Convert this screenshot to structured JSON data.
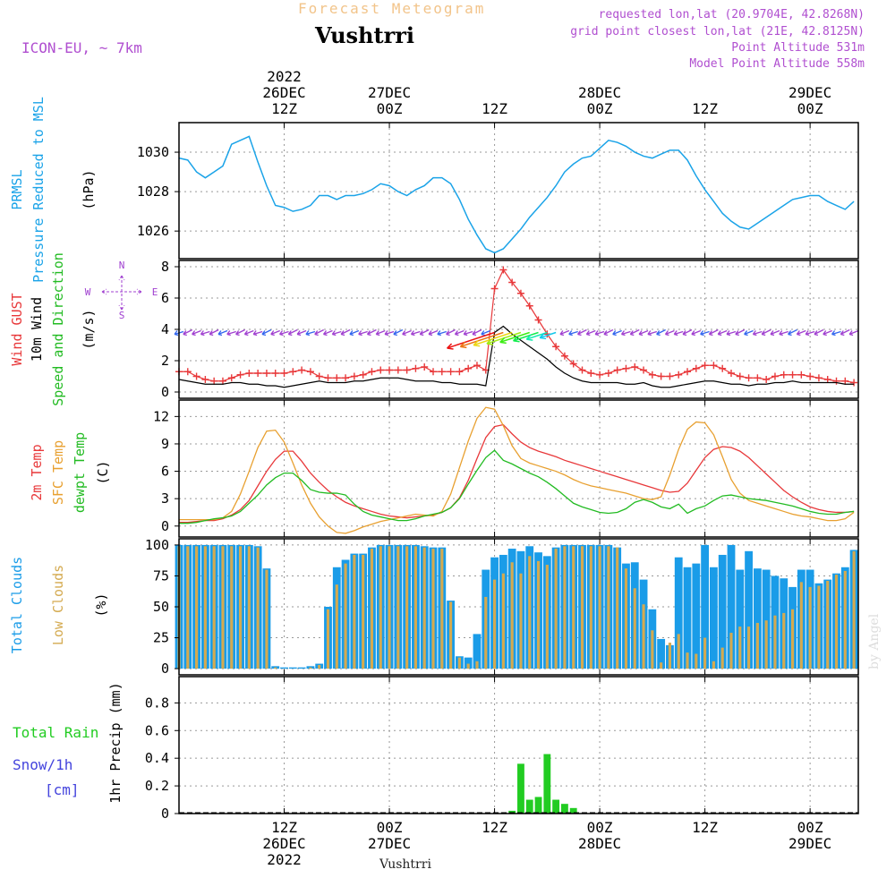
{
  "header": {
    "product_title": "Forecast Meteogram",
    "location": "Vushtrri",
    "model": "ICON-EU, ~ 7km",
    "info_lines": [
      "requested lon,lat (20.9704E, 42.8268N)",
      "grid point closest lon,lat (21E, 42.8125N)",
      "Point Altitude 531m",
      "Model Point Altitude 558m"
    ]
  },
  "footer": {
    "location": "Vushtrri",
    "credit": "by Angel"
  },
  "time_axis": {
    "hour_ticks": [
      12,
      24,
      36,
      48,
      60,
      72
    ],
    "top_labels": [
      {
        "h": 12,
        "lines": [
          "2022",
          "26DEC",
          "12Z"
        ]
      },
      {
        "h": 24,
        "lines": [
          "27DEC",
          "00Z"
        ]
      },
      {
        "h": 36,
        "lines": [
          "12Z"
        ]
      },
      {
        "h": 48,
        "lines": [
          "28DEC",
          "00Z"
        ]
      },
      {
        "h": 60,
        "lines": [
          "12Z"
        ]
      },
      {
        "h": 72,
        "lines": [
          "29DEC",
          "00Z"
        ]
      }
    ],
    "bottom_labels": [
      {
        "h": 12,
        "lines": [
          "12Z",
          "26DEC",
          "2022"
        ]
      },
      {
        "h": 24,
        "lines": [
          "00Z",
          "27DEC"
        ]
      },
      {
        "h": 36,
        "lines": [
          "12Z"
        ]
      },
      {
        "h": 48,
        "lines": [
          "00Z",
          "28DEC"
        ]
      },
      {
        "h": 60,
        "lines": [
          "12Z"
        ]
      },
      {
        "h": 72,
        "lines": [
          "00Z",
          "29DEC"
        ]
      }
    ]
  },
  "panels": {
    "pressure": {
      "labels": [
        "PRMSL",
        "Pressure Reduced to MSL"
      ],
      "unit": "(hPa)"
    },
    "wind": {
      "labels": [
        "Wind GUST",
        "10m Wind",
        "Speed and Direction"
      ],
      "unit": "(m/s)",
      "compass": {
        "n": "N",
        "s": "S",
        "w": "W",
        "e": "E"
      }
    },
    "temp": {
      "labels": [
        "2m Temp",
        "SFC Temp",
        "dewpt Temp"
      ],
      "unit": "(C)"
    },
    "clouds": {
      "labels": [
        "Total Clouds",
        "Low Clouds"
      ],
      "unit": "(%)"
    },
    "precip": {
      "labels": [
        "Total Rain",
        "Snow/1h",
        "[cm]"
      ],
      "axis_label": "1hr Precip (mm)"
    }
  },
  "colors": {
    "pressure": "#1aa3e8",
    "gust": "#e8383a",
    "wind": "#000000",
    "t2m": "#e8383a",
    "sfc": "#e8a030",
    "dewpt": "#22bb22",
    "total_clouds": "#1a9ce8",
    "low_clouds": "#d4aa50",
    "rain": "#22cc22",
    "snow": "#4444dd",
    "barb": "#a040d0"
  },
  "chart_data": [
    {
      "type": "line",
      "title": "PRMSL Pressure Reduced to MSL",
      "ylabel": "(hPa)",
      "ylim": [
        1024.6,
        1031.5
      ],
      "yticks": [
        1026,
        1028,
        1030
      ],
      "x_hours": [
        0,
        1,
        2,
        3,
        4,
        5,
        6,
        7,
        8,
        9,
        10,
        11,
        12,
        13,
        14,
        15,
        16,
        17,
        18,
        19,
        20,
        21,
        22,
        23,
        24,
        25,
        26,
        27,
        28,
        29,
        30,
        31,
        32,
        33,
        34,
        35,
        36,
        37,
        38,
        39,
        40,
        41,
        42,
        43,
        44,
        45,
        46,
        47,
        48,
        49,
        50,
        51,
        52,
        53,
        54,
        55,
        56,
        57,
        58,
        59,
        60,
        61,
        62,
        63,
        64,
        65,
        66,
        67,
        68,
        69,
        70,
        71,
        72,
        73,
        74,
        75,
        76,
        77
      ],
      "series": [
        {
          "name": "PRMSL",
          "values": [
            1029.7,
            1029.6,
            1029.0,
            1028.7,
            1029.0,
            1029.3,
            1030.4,
            1030.6,
            1030.8,
            1029.5,
            1028.3,
            1027.3,
            1027.2,
            1027.0,
            1027.1,
            1027.3,
            1027.8,
            1027.8,
            1027.6,
            1027.8,
            1027.8,
            1027.9,
            1028.1,
            1028.4,
            1028.3,
            1028.0,
            1027.8,
            1028.1,
            1028.3,
            1028.7,
            1028.7,
            1028.4,
            1027.6,
            1026.6,
            1025.8,
            1025.1,
            1024.9,
            1025.1,
            1025.6,
            1026.1,
            1026.7,
            1027.2,
            1027.7,
            1028.3,
            1029.0,
            1029.4,
            1029.7,
            1029.8,
            1030.2,
            1030.6,
            1030.5,
            1030.3,
            1030.0,
            1029.8,
            1029.7,
            1029.9,
            1030.1,
            1030.1,
            1029.6,
            1028.8,
            1028.1,
            1027.5,
            1026.9,
            1026.5,
            1026.2,
            1026.1,
            1026.4,
            1026.7,
            1027.0,
            1027.3,
            1027.6,
            1027.7,
            1027.8,
            1027.8,
            1027.5,
            1027.3,
            1027.1,
            1027.5
          ]
        }
      ]
    },
    {
      "type": "line",
      "title": "Wind GUST / 10m Wind Speed and Direction",
      "ylabel": "(m/s)",
      "ylim": [
        -0.4,
        8.4
      ],
      "yticks": [
        0,
        2,
        4,
        6,
        8
      ],
      "x_hours": [
        0,
        1,
        2,
        3,
        4,
        5,
        6,
        7,
        8,
        9,
        10,
        11,
        12,
        13,
        14,
        15,
        16,
        17,
        18,
        19,
        20,
        21,
        22,
        23,
        24,
        25,
        26,
        27,
        28,
        29,
        30,
        31,
        32,
        33,
        34,
        35,
        36,
        37,
        38,
        39,
        40,
        41,
        42,
        43,
        44,
        45,
        46,
        47,
        48,
        49,
        50,
        51,
        52,
        53,
        54,
        55,
        56,
        57,
        58,
        59,
        60,
        61,
        62,
        63,
        64,
        65,
        66,
        67,
        68,
        69,
        70,
        71,
        72,
        73,
        74,
        75,
        76,
        77
      ],
      "series": [
        {
          "name": "Wind GUST",
          "values": [
            1.3,
            1.3,
            1.0,
            0.8,
            0.7,
            0.7,
            0.9,
            1.1,
            1.2,
            1.2,
            1.2,
            1.2,
            1.2,
            1.3,
            1.4,
            1.3,
            1.0,
            0.9,
            0.9,
            0.9,
            1.0,
            1.1,
            1.3,
            1.4,
            1.4,
            1.4,
            1.4,
            1.5,
            1.6,
            1.3,
            1.3,
            1.3,
            1.3,
            1.5,
            1.7,
            1.4,
            6.6,
            7.8,
            7.0,
            6.3,
            5.5,
            4.6,
            3.7,
            2.9,
            2.3,
            1.8,
            1.4,
            1.2,
            1.1,
            1.2,
            1.4,
            1.5,
            1.6,
            1.4,
            1.1,
            1.0,
            1.0,
            1.1,
            1.3,
            1.5,
            1.7,
            1.7,
            1.5,
            1.2,
            1.0,
            0.9,
            0.9,
            0.8,
            1.0,
            1.1,
            1.1,
            1.1,
            1.0,
            0.9,
            0.8,
            0.7,
            0.7,
            0.6
          ]
        },
        {
          "name": "10m Wind",
          "values": [
            0.8,
            0.7,
            0.6,
            0.5,
            0.5,
            0.5,
            0.6,
            0.6,
            0.5,
            0.5,
            0.4,
            0.4,
            0.3,
            0.4,
            0.5,
            0.6,
            0.7,
            0.6,
            0.6,
            0.6,
            0.7,
            0.7,
            0.8,
            0.9,
            0.9,
            0.9,
            0.8,
            0.7,
            0.7,
            0.7,
            0.6,
            0.6,
            0.5,
            0.5,
            0.5,
            0.4,
            3.8,
            4.2,
            3.7,
            3.3,
            2.9,
            2.5,
            2.1,
            1.6,
            1.2,
            0.9,
            0.7,
            0.6,
            0.6,
            0.6,
            0.6,
            0.5,
            0.5,
            0.6,
            0.4,
            0.3,
            0.3,
            0.4,
            0.5,
            0.6,
            0.7,
            0.7,
            0.6,
            0.5,
            0.5,
            0.4,
            0.5,
            0.5,
            0.6,
            0.6,
            0.7,
            0.6,
            0.6,
            0.6,
            0.6,
            0.6,
            0.5,
            0.5
          ]
        }
      ]
    },
    {
      "type": "line",
      "title": "2m Temp / SFC Temp / dewpt Temp",
      "ylabel": "(C)",
      "ylim": [
        -1.2,
        13.8
      ],
      "yticks": [
        0,
        3,
        6,
        9,
        12
      ],
      "x_hours": [
        0,
        1,
        2,
        3,
        4,
        5,
        6,
        7,
        8,
        9,
        10,
        11,
        12,
        13,
        14,
        15,
        16,
        17,
        18,
        19,
        20,
        21,
        22,
        23,
        24,
        25,
        26,
        27,
        28,
        29,
        30,
        31,
        32,
        33,
        34,
        35,
        36,
        37,
        38,
        39,
        40,
        41,
        42,
        43,
        44,
        45,
        46,
        47,
        48,
        49,
        50,
        51,
        52,
        53,
        54,
        55,
        56,
        57,
        58,
        59,
        60,
        61,
        62,
        63,
        64,
        65,
        66,
        67,
        68,
        69,
        70,
        71,
        72,
        73,
        74,
        75,
        76,
        77
      ],
      "series": [
        {
          "name": "2m Temp",
          "values": [
            0.4,
            0.4,
            0.5,
            0.6,
            0.6,
            0.8,
            1.2,
            1.8,
            2.8,
            4.4,
            6.0,
            7.3,
            8.2,
            8.2,
            7.1,
            5.8,
            4.8,
            3.9,
            3.2,
            2.6,
            2.2,
            1.9,
            1.6,
            1.3,
            1.1,
            1.0,
            0.9,
            1.0,
            1.1,
            1.2,
            1.5,
            2.0,
            3.1,
            5.0,
            7.4,
            9.7,
            10.9,
            11.1,
            10.1,
            9.2,
            8.6,
            8.2,
            7.9,
            7.6,
            7.2,
            6.9,
            6.6,
            6.3,
            6.0,
            5.7,
            5.4,
            5.1,
            4.8,
            4.5,
            4.2,
            3.9,
            3.7,
            3.8,
            4.7,
            6.1,
            7.5,
            8.4,
            8.7,
            8.6,
            8.2,
            7.5,
            6.6,
            5.7,
            4.8,
            3.9,
            3.2,
            2.6,
            2.1,
            1.8,
            1.6,
            1.5,
            1.5,
            1.6
          ]
        },
        {
          "name": "SFC Temp",
          "values": [
            0.7,
            0.7,
            0.7,
            0.7,
            0.7,
            0.9,
            1.6,
            3.5,
            6.0,
            8.6,
            10.4,
            10.5,
            9.2,
            6.9,
            4.5,
            2.5,
            1.0,
            0.0,
            -0.7,
            -0.8,
            -0.5,
            -0.1,
            0.2,
            0.5,
            0.7,
            0.9,
            1.1,
            1.3,
            1.2,
            1.1,
            1.6,
            3.5,
            6.4,
            9.3,
            11.8,
            13.0,
            12.8,
            11.0,
            8.8,
            7.4,
            6.9,
            6.6,
            6.3,
            6.0,
            5.6,
            5.1,
            4.7,
            4.4,
            4.2,
            4.0,
            3.8,
            3.6,
            3.3,
            3.0,
            2.9,
            3.2,
            5.6,
            8.4,
            10.6,
            11.4,
            11.3,
            10.0,
            7.6,
            5.1,
            3.6,
            2.8,
            2.5,
            2.2,
            1.9,
            1.6,
            1.3,
            1.1,
            1.0,
            0.8,
            0.6,
            0.6,
            0.8,
            1.5
          ]
        },
        {
          "name": "dewpt Temp",
          "values": [
            0.3,
            0.3,
            0.4,
            0.6,
            0.8,
            0.9,
            1.1,
            1.6,
            2.5,
            3.4,
            4.5,
            5.3,
            5.8,
            5.8,
            5.0,
            4.0,
            3.7,
            3.6,
            3.6,
            3.4,
            2.4,
            1.6,
            1.2,
            1.0,
            0.8,
            0.6,
            0.6,
            0.8,
            1.1,
            1.3,
            1.5,
            2.0,
            3.0,
            4.6,
            6.1,
            7.5,
            8.3,
            7.2,
            6.8,
            6.3,
            5.8,
            5.4,
            4.8,
            4.1,
            3.3,
            2.5,
            2.1,
            1.8,
            1.5,
            1.4,
            1.5,
            1.9,
            2.6,
            2.9,
            2.6,
            2.1,
            1.9,
            2.4,
            1.4,
            1.9,
            2.2,
            2.8,
            3.3,
            3.4,
            3.2,
            3.0,
            2.9,
            2.8,
            2.6,
            2.4,
            2.2,
            1.9,
            1.6,
            1.4,
            1.3,
            1.3,
            1.5,
            1.6
          ]
        }
      ]
    },
    {
      "type": "bar",
      "title": "Total Clouds / Low Clouds",
      "ylabel": "(%)",
      "ylim": [
        -5,
        105
      ],
      "yticks": [
        0,
        25,
        50,
        75,
        100
      ],
      "x_hours": [
        0,
        1,
        2,
        3,
        4,
        5,
        6,
        7,
        8,
        9,
        10,
        11,
        12,
        13,
        14,
        15,
        16,
        17,
        18,
        19,
        20,
        21,
        22,
        23,
        24,
        25,
        26,
        27,
        28,
        29,
        30,
        31,
        32,
        33,
        34,
        35,
        36,
        37,
        38,
        39,
        40,
        41,
        42,
        43,
        44,
        45,
        46,
        47,
        48,
        49,
        50,
        51,
        52,
        53,
        54,
        55,
        56,
        57,
        58,
        59,
        60,
        61,
        62,
        63,
        64,
        65,
        66,
        67,
        68,
        69,
        70,
        71,
        72,
        73,
        74,
        75,
        76,
        77
      ],
      "series": [
        {
          "name": "Total Clouds",
          "values": [
            100,
            100,
            100,
            100,
            100,
            100,
            100,
            100,
            100,
            99,
            81,
            2,
            1,
            1,
            1,
            2,
            4,
            50,
            82,
            88,
            93,
            93,
            98,
            100,
            100,
            100,
            100,
            100,
            99,
            98,
            98,
            55,
            10,
            9,
            28,
            80,
            90,
            92,
            97,
            95,
            99,
            94,
            91,
            98,
            100,
            100,
            100,
            100,
            100,
            100,
            98,
            85,
            86,
            72,
            48,
            24,
            19,
            90,
            82,
            85,
            100,
            82,
            92,
            100,
            80,
            95,
            81,
            80,
            75,
            73,
            66,
            80,
            80,
            69,
            72,
            77,
            82,
            96
          ]
        },
        {
          "name": "Low Clouds",
          "values": [
            99,
            99,
            99,
            99,
            99,
            99,
            99,
            99,
            99,
            98,
            80,
            1,
            0,
            0,
            0,
            1,
            3,
            48,
            68,
            85,
            92,
            92,
            97,
            99,
            99,
            99,
            99,
            99,
            98,
            97,
            97,
            54,
            9,
            4,
            6,
            58,
            72,
            77,
            86,
            77,
            91,
            87,
            84,
            97,
            99,
            99,
            99,
            99,
            99,
            99,
            98,
            81,
            65,
            52,
            31,
            5,
            21,
            28,
            13,
            12,
            25,
            6,
            17,
            29,
            34,
            34,
            37,
            39,
            43,
            45,
            48,
            70,
            66,
            67,
            71,
            76,
            79,
            95
          ]
        }
      ]
    },
    {
      "type": "bar",
      "title": "1hr Precip (mm)",
      "ylabel": "1hr Precip (mm)",
      "ylim": [
        0,
        0.99
      ],
      "yticks": [
        0,
        0.2,
        0.4,
        0.6,
        0.8
      ],
      "x_hours": [
        38,
        39,
        40,
        41,
        42,
        43,
        44,
        45
      ],
      "series": [
        {
          "name": "Total Rain",
          "values": [
            0.02,
            0.36,
            0.1,
            0.12,
            0.43,
            0.1,
            0.07,
            0.04
          ]
        }
      ]
    }
  ]
}
